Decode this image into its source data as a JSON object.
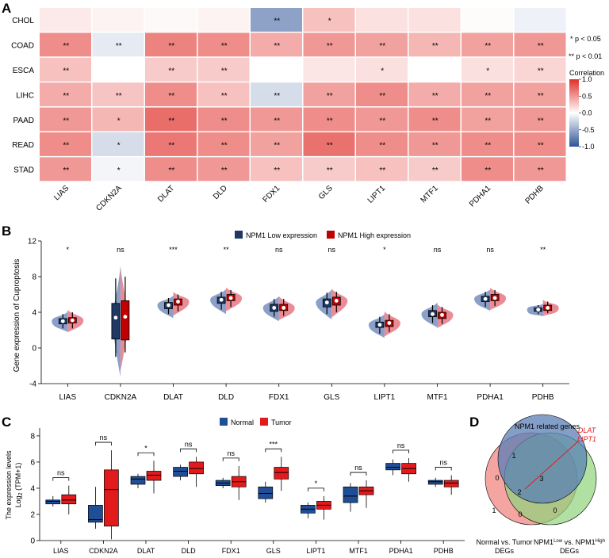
{
  "panels": {
    "a": "A",
    "b": "B",
    "c": "C",
    "d": "D"
  },
  "chart_data": [
    {
      "type": "heatmap",
      "id": "A",
      "rows": [
        "CHOL",
        "COAD",
        "ESCA",
        "LIHC",
        "PAAD",
        "READ",
        "STAD"
      ],
      "columns": [
        "LIAS",
        "CDKN2A",
        "DLAT",
        "DLD",
        "FDX1",
        "GLS",
        "LIPT1",
        "MTF1",
        "PDHA1",
        "PDHB"
      ],
      "values": [
        [
          0.1,
          0.06,
          0.03,
          0.06,
          -0.55,
          0.3,
          0.14,
          0.14,
          0.02,
          -0.08
        ],
        [
          0.55,
          -0.12,
          0.6,
          0.55,
          0.4,
          0.5,
          0.45,
          0.35,
          0.45,
          0.5
        ],
        [
          0.3,
          0.0,
          0.25,
          0.25,
          0.0,
          0.12,
          0.15,
          0.0,
          0.15,
          0.2
        ],
        [
          0.4,
          0.28,
          0.55,
          0.3,
          -0.2,
          0.45,
          0.55,
          0.4,
          0.45,
          0.45
        ],
        [
          0.5,
          0.35,
          0.7,
          0.55,
          0.5,
          0.55,
          0.5,
          0.55,
          0.45,
          0.5
        ],
        [
          0.55,
          -0.2,
          0.65,
          0.55,
          0.45,
          0.68,
          0.55,
          0.5,
          0.55,
          0.55
        ],
        [
          0.5,
          -0.06,
          0.55,
          0.5,
          0.3,
          0.25,
          0.3,
          0.25,
          0.55,
          0.5
        ]
      ],
      "stars": [
        [
          "",
          "",
          "",
          "",
          "**",
          "*",
          "",
          "",
          "",
          ""
        ],
        [
          "**",
          "**",
          "**",
          "**",
          "**",
          "**",
          "**",
          "**",
          "**",
          "**"
        ],
        [
          "**",
          "",
          "**",
          "**",
          "",
          "",
          "*",
          "",
          "*",
          "**"
        ],
        [
          "**",
          "**",
          "**",
          "**",
          "**",
          "**",
          "**",
          "**",
          "**",
          "**"
        ],
        [
          "**",
          "*",
          "**",
          "**",
          "**",
          "**",
          "**",
          "**",
          "**",
          "**"
        ],
        [
          "**",
          "*",
          "**",
          "**",
          "**",
          "**",
          "**",
          "**",
          "**",
          "**"
        ],
        [
          "**",
          "*",
          "**",
          "**",
          "**",
          "**",
          "**",
          "**",
          "**",
          "**"
        ]
      ],
      "legend_title": "Correlation",
      "legend_ticks": [
        "1.0",
        "0.5",
        "0.0",
        "-0.5",
        "-1.0"
      ],
      "range": [
        -1.0,
        1.0
      ],
      "colors": {
        "neg": "#2f5597",
        "mid": "#ffffff",
        "pos": "#e0302a"
      },
      "sig_notes": [
        "* p < 0.05",
        "** p < 0.01"
      ]
    },
    {
      "type": "violin",
      "id": "B",
      "ylabel": "Gene expression of Cuproptosis",
      "ylim": [
        -4,
        12
      ],
      "yticks": [
        "-4",
        "0",
        "4",
        "8",
        "12"
      ],
      "categories": [
        "LIAS",
        "CDKN2A",
        "DLAT",
        "DLD",
        "FDX1",
        "GLS",
        "LIPT1",
        "MTF1",
        "PDHA1",
        "PDHB"
      ],
      "significance": [
        "*",
        "ns",
        "***",
        "**",
        "ns",
        "ns",
        "*",
        "ns",
        "ns",
        "**"
      ],
      "legend": [
        "NPM1 Low expression",
        "NPM1 High expression"
      ],
      "colors": {
        "low": "#1f3864",
        "low_violin": "#7d96c3",
        "high": "#c00000",
        "high_violin": "#e8808a"
      },
      "series": [
        {
          "name": "NPM1 Low expression",
          "q1": [
            2.7,
            1.0,
            4.4,
            5.0,
            4.1,
            4.6,
            2.3,
            3.5,
            5.2,
            4.1
          ],
          "median": [
            3.0,
            3.4,
            4.8,
            5.4,
            4.5,
            5.1,
            2.6,
            3.8,
            5.5,
            4.3
          ],
          "q3": [
            3.3,
            5.0,
            5.1,
            5.7,
            4.9,
            5.5,
            2.9,
            4.2,
            5.8,
            4.5
          ],
          "lo": [
            2.2,
            -1.0,
            3.8,
            4.3,
            3.5,
            3.8,
            1.6,
            2.8,
            4.6,
            3.8
          ],
          "hi": [
            3.8,
            7.8,
            5.6,
            6.3,
            5.5,
            6.2,
            3.5,
            4.8,
            6.3,
            4.8
          ]
        },
        {
          "name": "NPM1 High expression",
          "q1": [
            2.8,
            0.9,
            4.8,
            5.3,
            4.2,
            4.8,
            2.4,
            3.3,
            5.3,
            4.2
          ],
          "median": [
            3.1,
            3.5,
            5.2,
            5.6,
            4.5,
            5.3,
            2.8,
            3.7,
            5.6,
            4.5
          ],
          "q3": [
            3.4,
            5.3,
            5.5,
            6.0,
            4.9,
            5.7,
            3.1,
            4.0,
            6.0,
            4.8
          ],
          "lo": [
            2.2,
            -0.5,
            4.1,
            4.6,
            3.6,
            4.0,
            1.8,
            2.7,
            4.7,
            3.9
          ],
          "hi": [
            4.0,
            8.0,
            6.0,
            6.5,
            5.5,
            6.3,
            3.8,
            4.6,
            6.5,
            5.2
          ]
        }
      ]
    },
    {
      "type": "box",
      "id": "C",
      "ylabel_line1": "The expression levels",
      "ylabel_line2": "Log",
      "ylabel_sub": "2",
      "ylabel_tail": " (TPM+1)",
      "ylim": [
        0,
        8.6
      ],
      "yticks": [
        "0",
        "2",
        "4",
        "6",
        "8"
      ],
      "categories": [
        "LIAS",
        "CDKN2A",
        "DLAT",
        "DLD",
        "FDX1",
        "GLS",
        "LIPT1",
        "MTF1",
        "PDHA1",
        "PDHB"
      ],
      "significance": [
        "ns",
        "ns",
        "*",
        "ns",
        "ns",
        "***",
        "*",
        "ns",
        "ns",
        "ns"
      ],
      "legend": [
        "Normal",
        "Tumor"
      ],
      "colors": {
        "normal": "#1f4e96",
        "tumor": "#e31a1c"
      },
      "series": [
        {
          "name": "Normal",
          "lo": [
            2.6,
            0.9,
            4.0,
            4.6,
            4.0,
            2.9,
            1.7,
            2.2,
            5.0,
            4.1
          ],
          "q1": [
            2.8,
            1.4,
            4.3,
            4.9,
            4.2,
            3.2,
            2.1,
            2.9,
            5.4,
            4.3
          ],
          "median": [
            3.0,
            1.6,
            4.7,
            5.3,
            4.4,
            3.6,
            2.4,
            3.4,
            5.6,
            4.5
          ],
          "q3": [
            3.1,
            2.7,
            4.9,
            5.6,
            4.6,
            4.1,
            2.7,
            4.1,
            5.9,
            4.6
          ],
          "hi": [
            3.4,
            4.1,
            5.1,
            5.8,
            4.8,
            4.5,
            2.9,
            4.4,
            6.2,
            4.8
          ]
        },
        {
          "name": "Tumor",
          "lo": [
            2.0,
            0.1,
            3.6,
            4.1,
            3.1,
            3.8,
            1.6,
            2.5,
            4.5,
            3.5
          ],
          "q1": [
            2.8,
            1.1,
            4.6,
            5.1,
            4.1,
            4.7,
            2.4,
            3.5,
            5.1,
            4.1
          ],
          "median": [
            3.1,
            3.9,
            5.0,
            5.5,
            4.5,
            5.2,
            2.7,
            3.8,
            5.5,
            4.4
          ],
          "q3": [
            3.5,
            5.4,
            5.3,
            6.0,
            4.9,
            5.6,
            3.0,
            4.1,
            5.9,
            4.6
          ],
          "hi": [
            4.2,
            6.9,
            6.1,
            6.4,
            5.7,
            6.4,
            3.4,
            4.6,
            6.3,
            5.0
          ]
        }
      ]
    },
    {
      "type": "venn",
      "id": "D",
      "sets": [
        "NPM1 related genes",
        "Normal vs. Tumor",
        "DEGs",
        "NPM1",
        "Low",
        " vs. NPM1",
        "High",
        "DEGs"
      ],
      "regions": {
        "top_only": "1",
        "left_only": "1",
        "right_only": "0",
        "top_left": "0",
        "top_right": "3",
        "left_right": "0",
        "center": "2"
      },
      "annotation": [
        "DLAT",
        "LIPT1"
      ],
      "colors": {
        "top": "#5a7fb5",
        "left": "#f07f7a",
        "right": "#8ed47c"
      }
    }
  ]
}
